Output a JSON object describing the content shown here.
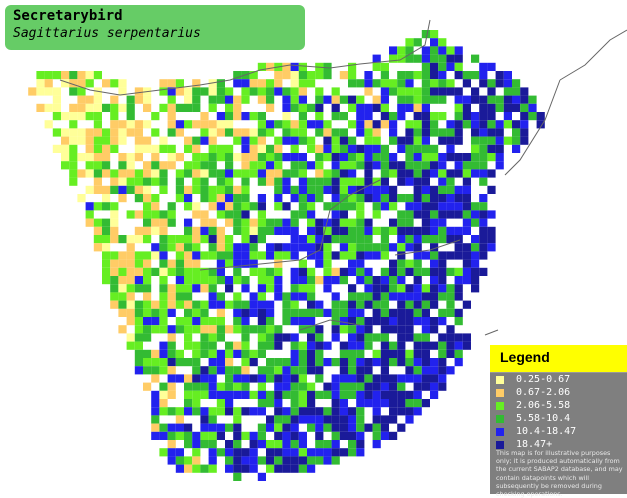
{
  "title": {
    "common_name": "Secretarybird",
    "scientific_name": "Sagittarius serpentarius"
  },
  "legend": {
    "heading": "Legend",
    "items": [
      {
        "label": "0.25-0.67",
        "color": "#ffff99"
      },
      {
        "label": "0.67-2.06",
        "color": "#ffcc66"
      },
      {
        "label": "2.06-5.58",
        "color": "#66ee22"
      },
      {
        "label": "5.58-10.4",
        "color": "#33bb33"
      },
      {
        "label": "10.4-18.47",
        "color": "#2222ee"
      },
      {
        "label": "18.47+",
        "color": "#1a1a99"
      }
    ],
    "disclaimer": "This map is for illustrative purposes only; it is produced automatically from the current SABAP2 database, and may contain datapoints which will subsequently be removed during checking operations."
  },
  "map_colors": {
    "background": "#ffffff",
    "border_line": "#666666"
  }
}
